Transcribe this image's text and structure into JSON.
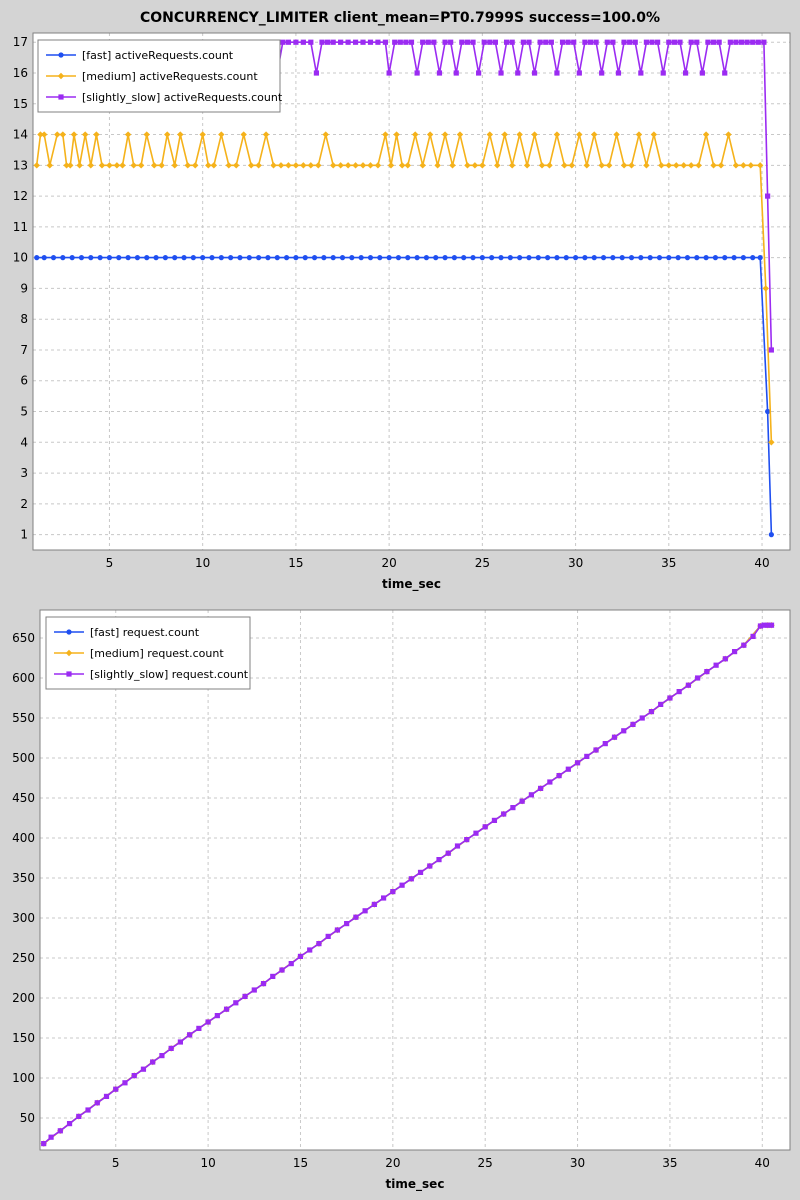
{
  "chart_data": [
    {
      "type": "line",
      "title": "CONCURRENCY_LIMITER client_mean=PT0.7999S success=100.0%",
      "xlabel": "time_sec",
      "ylabel": "",
      "xlim": [
        0.9,
        41.5
      ],
      "ylim": [
        0.5,
        17.3
      ],
      "xticks": [
        5,
        10,
        15,
        20,
        25,
        30,
        35,
        40
      ],
      "yticks": [
        1,
        2,
        3,
        4,
        5,
        6,
        7,
        8,
        9,
        10,
        11,
        12,
        13,
        14,
        15,
        16,
        17
      ],
      "grid": true,
      "legend_position": "top-left",
      "series": [
        {
          "name": "[fast] activeRequests.count",
          "color": "#1f4ff0",
          "marker": "circle",
          "x": [
            1.1,
            1.5,
            2.0,
            2.5,
            3.0,
            3.5,
            4.0,
            4.5,
            5.0,
            5.5,
            6.0,
            6.5,
            7.0,
            7.5,
            8.0,
            8.5,
            9.0,
            9.5,
            10.0,
            10.5,
            11.0,
            11.5,
            12.0,
            12.5,
            13.0,
            13.5,
            14.0,
            14.5,
            15.0,
            15.5,
            16.0,
            16.5,
            17.0,
            17.5,
            18.0,
            18.5,
            19.0,
            19.5,
            20.0,
            20.5,
            21.0,
            21.5,
            22.0,
            22.5,
            23.0,
            23.5,
            24.0,
            24.5,
            25.0,
            25.5,
            26.0,
            26.5,
            27.0,
            27.5,
            28.0,
            28.5,
            29.0,
            29.5,
            30.0,
            30.5,
            31.0,
            31.5,
            32.0,
            32.5,
            33.0,
            33.5,
            34.0,
            34.5,
            35.0,
            35.5,
            36.0,
            36.5,
            37.0,
            37.5,
            38.0,
            38.5,
            39.0,
            39.5,
            39.9,
            40.3,
            40.5
          ],
          "values": [
            10,
            10,
            10,
            10,
            10,
            10,
            10,
            10,
            10,
            10,
            10,
            10,
            10,
            10,
            10,
            10,
            10,
            10,
            10,
            10,
            10,
            10,
            10,
            10,
            10,
            10,
            10,
            10,
            10,
            10,
            10,
            10,
            10,
            10,
            10,
            10,
            10,
            10,
            10,
            10,
            10,
            10,
            10,
            10,
            10,
            10,
            10,
            10,
            10,
            10,
            10,
            10,
            10,
            10,
            10,
            10,
            10,
            10,
            10,
            10,
            10,
            10,
            10,
            10,
            10,
            10,
            10,
            10,
            10,
            10,
            10,
            10,
            10,
            10,
            10,
            10,
            10,
            10,
            10,
            5,
            1
          ]
        },
        {
          "name": "[medium] activeRequests.count",
          "color": "#f5b21b",
          "marker": "diamond",
          "x": [
            1.1,
            1.3,
            1.5,
            1.8,
            2.2,
            2.5,
            2.7,
            2.9,
            3.1,
            3.4,
            3.7,
            4.0,
            4.3,
            4.6,
            5.0,
            5.4,
            5.7,
            6.0,
            6.3,
            6.7,
            7.0,
            7.4,
            7.8,
            8.1,
            8.5,
            8.8,
            9.2,
            9.6,
            10.0,
            10.3,
            10.6,
            11.0,
            11.4,
            11.8,
            12.2,
            12.6,
            13.0,
            13.4,
            13.8,
            14.2,
            14.6,
            15.0,
            15.4,
            15.8,
            16.2,
            16.6,
            17.0,
            17.4,
            17.8,
            18.2,
            18.6,
            19.0,
            19.4,
            19.8,
            20.1,
            20.4,
            20.7,
            21.0,
            21.4,
            21.8,
            22.2,
            22.6,
            23.0,
            23.4,
            23.8,
            24.2,
            24.6,
            25.0,
            25.4,
            25.8,
            26.2,
            26.6,
            27.0,
            27.4,
            27.8,
            28.2,
            28.6,
            29.0,
            29.4,
            29.8,
            30.2,
            30.6,
            31.0,
            31.4,
            31.8,
            32.2,
            32.6,
            33.0,
            33.4,
            33.8,
            34.2,
            34.6,
            35.0,
            35.4,
            35.8,
            36.2,
            36.6,
            37.0,
            37.4,
            37.8,
            38.2,
            38.6,
            39.0,
            39.4,
            39.9,
            40.2,
            40.5
          ],
          "values": [
            13,
            14,
            14,
            13,
            14,
            14,
            13,
            13,
            14,
            13,
            14,
            13,
            14,
            13,
            13,
            13,
            13,
            14,
            13,
            13,
            14,
            13,
            13,
            14,
            13,
            14,
            13,
            13,
            14,
            13,
            13,
            14,
            13,
            13,
            14,
            13,
            13,
            14,
            13,
            13,
            13,
            13,
            13,
            13,
            13,
            14,
            13,
            13,
            13,
            13,
            13,
            13,
            13,
            14,
            13,
            14,
            13,
            13,
            14,
            13,
            14,
            13,
            14,
            13,
            14,
            13,
            13,
            13,
            14,
            13,
            14,
            13,
            14,
            13,
            14,
            13,
            13,
            14,
            13,
            13,
            14,
            13,
            14,
            13,
            13,
            14,
            13,
            13,
            14,
            13,
            14,
            13,
            13,
            13,
            13,
            13,
            13,
            14,
            13,
            13,
            14,
            13,
            13,
            13,
            13,
            9,
            4
          ]
        },
        {
          "name": "[slightly_slow] activeRequests.count",
          "color": "#9b2bf2",
          "marker": "square",
          "x": [
            13.8,
            14.0,
            14.3,
            14.6,
            15.0,
            15.4,
            15.8,
            16.1,
            16.4,
            16.7,
            17.0,
            17.4,
            17.8,
            18.2,
            18.6,
            19.0,
            19.4,
            19.8,
            20.0,
            20.3,
            20.6,
            20.9,
            21.2,
            21.5,
            21.8,
            22.1,
            22.4,
            22.7,
            23.0,
            23.3,
            23.6,
            23.9,
            24.2,
            24.5,
            24.8,
            25.1,
            25.4,
            25.7,
            26.0,
            26.3,
            26.6,
            26.9,
            27.2,
            27.5,
            27.8,
            28.1,
            28.4,
            28.7,
            29.0,
            29.3,
            29.6,
            29.9,
            30.2,
            30.5,
            30.8,
            31.1,
            31.4,
            31.7,
            32.0,
            32.3,
            32.6,
            32.9,
            33.2,
            33.5,
            33.8,
            34.1,
            34.4,
            34.7,
            35.0,
            35.3,
            35.6,
            35.9,
            36.2,
            36.5,
            36.8,
            37.1,
            37.4,
            37.7,
            38.0,
            38.3,
            38.6,
            38.9,
            39.2,
            39.5,
            39.8,
            40.1,
            40.3,
            40.5
          ],
          "values": [
            17,
            16,
            17,
            17,
            17,
            17,
            17,
            16,
            17,
            17,
            17,
            17,
            17,
            17,
            17,
            17,
            17,
            17,
            16,
            17,
            17,
            17,
            17,
            16,
            17,
            17,
            17,
            16,
            17,
            17,
            16,
            17,
            17,
            17,
            16,
            17,
            17,
            17,
            16,
            17,
            17,
            16,
            17,
            17,
            16,
            17,
            17,
            17,
            16,
            17,
            17,
            17,
            16,
            17,
            17,
            17,
            16,
            17,
            17,
            16,
            17,
            17,
            17,
            16,
            17,
            17,
            17,
            16,
            17,
            17,
            17,
            16,
            17,
            17,
            16,
            17,
            17,
            17,
            16,
            17,
            17,
            17,
            17,
            17,
            17,
            17,
            12,
            7
          ]
        }
      ]
    },
    {
      "type": "line",
      "title": "",
      "xlabel": "time_sec",
      "ylabel": "",
      "xlim": [
        0.9,
        41.5
      ],
      "ylim": [
        10,
        685
      ],
      "xticks": [
        5,
        10,
        15,
        20,
        25,
        30,
        35,
        40
      ],
      "yticks": [
        50,
        100,
        150,
        200,
        250,
        300,
        350,
        400,
        450,
        500,
        550,
        600,
        650
      ],
      "grid": true,
      "legend_position": "top-left",
      "series": [
        {
          "name": "[fast] request.count",
          "color": "#1f4ff0",
          "marker": "circle",
          "x": [
            1.1,
            2.0,
            3.0,
            4.0,
            5.0,
            6.0,
            7.0,
            8.0,
            9.0,
            10.0,
            11.0,
            12.0,
            13.0,
            14.0,
            15.0,
            16.0,
            17.0,
            18.0,
            19.0,
            20.0,
            21.0,
            22.0,
            23.0,
            24.0,
            25.0,
            26.0,
            27.0,
            28.0,
            29.0,
            30.0,
            31.0,
            32.0,
            33.0,
            34.0,
            35.0,
            36.0,
            37.0,
            38.0,
            39.0,
            39.9,
            40.3,
            40.5
          ],
          "values": [
            18,
            34,
            52,
            69,
            86,
            103,
            120,
            137,
            154,
            170,
            186,
            202,
            218,
            235,
            252,
            268,
            285,
            301,
            317,
            333,
            349,
            365,
            381,
            398,
            414,
            430,
            446,
            462,
            478,
            494,
            510,
            526,
            542,
            558,
            575,
            591,
            608,
            624,
            641,
            665,
            666,
            666
          ]
        },
        {
          "name": "[medium] request.count",
          "color": "#f5b21b",
          "marker": "diamond",
          "x": [
            1.1,
            2.0,
            3.0,
            4.0,
            5.0,
            6.0,
            7.0,
            8.0,
            9.0,
            10.0,
            11.0,
            12.0,
            13.0,
            14.0,
            15.0,
            16.0,
            17.0,
            18.0,
            19.0,
            20.0,
            21.0,
            22.0,
            23.0,
            24.0,
            25.0,
            26.0,
            27.0,
            28.0,
            29.0,
            30.0,
            31.0,
            32.0,
            33.0,
            34.0,
            35.0,
            36.0,
            37.0,
            38.0,
            39.0,
            39.9,
            40.3,
            40.5
          ],
          "values": [
            18,
            34,
            52,
            69,
            86,
            103,
            120,
            137,
            154,
            170,
            186,
            202,
            218,
            235,
            252,
            268,
            285,
            301,
            317,
            333,
            349,
            365,
            381,
            398,
            414,
            430,
            446,
            462,
            478,
            494,
            510,
            526,
            542,
            558,
            575,
            591,
            608,
            624,
            641,
            665,
            666,
            666
          ]
        },
        {
          "name": "[slightly_slow] request.count",
          "color": "#9b2bf2",
          "marker": "square",
          "x": [
            1.1,
            1.5,
            2.0,
            2.5,
            3.0,
            3.5,
            4.0,
            4.5,
            5.0,
            5.5,
            6.0,
            6.5,
            7.0,
            7.5,
            8.0,
            8.5,
            9.0,
            9.5,
            10.0,
            10.5,
            11.0,
            11.5,
            12.0,
            12.5,
            13.0,
            13.5,
            14.0,
            14.5,
            15.0,
            15.5,
            16.0,
            16.5,
            17.0,
            17.5,
            18.0,
            18.5,
            19.0,
            19.5,
            20.0,
            20.5,
            21.0,
            21.5,
            22.0,
            22.5,
            23.0,
            23.5,
            24.0,
            24.5,
            25.0,
            25.5,
            26.0,
            26.5,
            27.0,
            27.5,
            28.0,
            28.5,
            29.0,
            29.5,
            30.0,
            30.5,
            31.0,
            31.5,
            32.0,
            32.5,
            33.0,
            33.5,
            34.0,
            34.5,
            35.0,
            35.5,
            36.0,
            36.5,
            37.0,
            37.5,
            38.0,
            38.5,
            39.0,
            39.5,
            39.9,
            40.1,
            40.3,
            40.5
          ],
          "values": [
            18,
            26,
            34,
            43,
            52,
            60,
            69,
            77,
            86,
            94,
            103,
            111,
            120,
            128,
            137,
            145,
            154,
            162,
            170,
            178,
            186,
            194,
            202,
            210,
            218,
            227,
            235,
            243,
            252,
            260,
            268,
            277,
            285,
            293,
            301,
            309,
            317,
            325,
            333,
            341,
            349,
            357,
            365,
            373,
            381,
            390,
            398,
            406,
            414,
            422,
            430,
            438,
            446,
            454,
            462,
            470,
            478,
            486,
            494,
            502,
            510,
            518,
            526,
            534,
            542,
            550,
            558,
            567,
            575,
            583,
            591,
            600,
            608,
            616,
            624,
            633,
            641,
            652,
            665,
            666,
            666,
            666
          ]
        }
      ]
    }
  ]
}
